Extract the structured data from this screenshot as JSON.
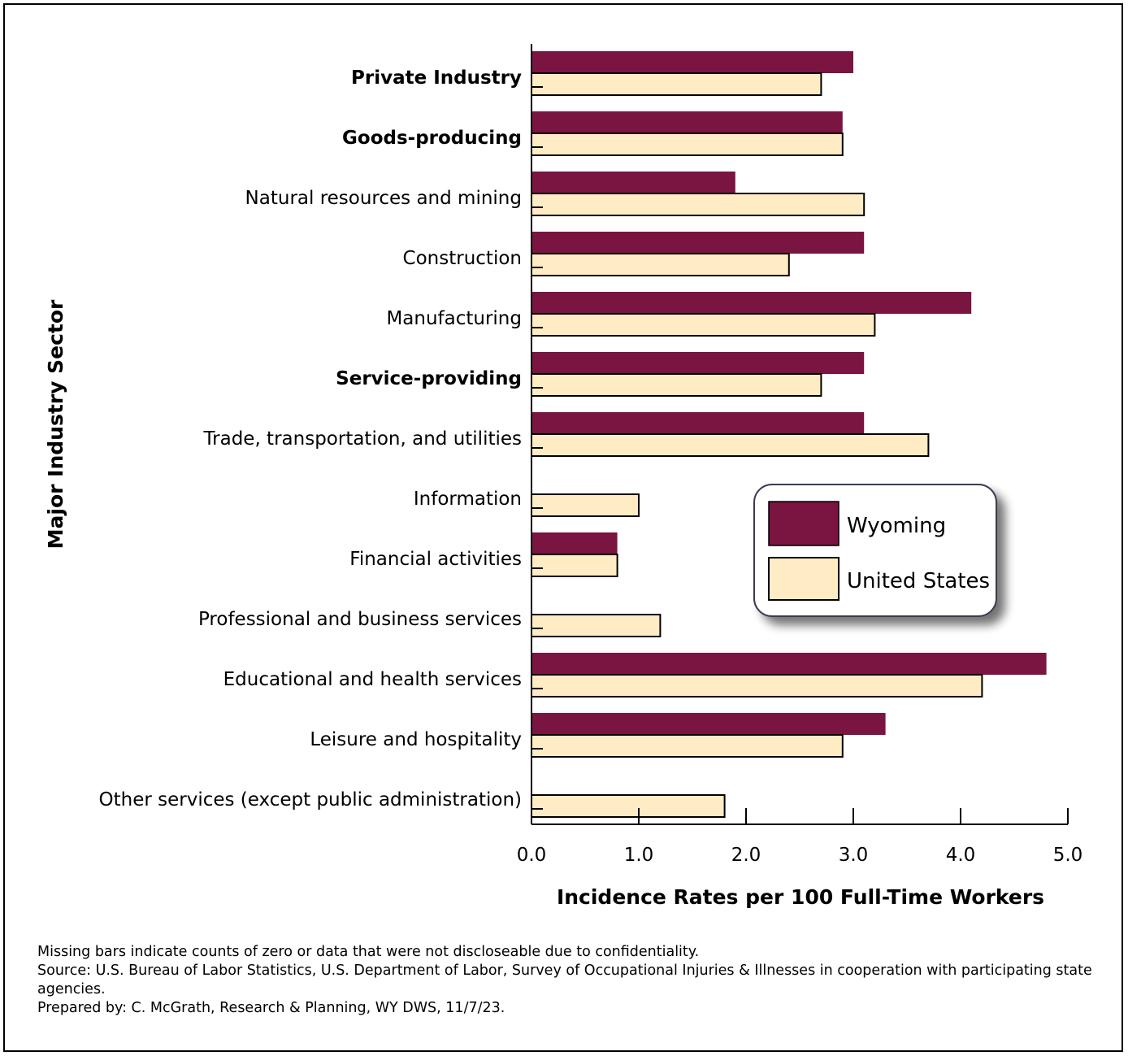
{
  "chart_data": {
    "type": "bar",
    "orientation": "horizontal",
    "ylabel": "Major Industry Sector",
    "xlabel": "Incidence Rates per 100 Full-Time Workers",
    "xlim": [
      0,
      5
    ],
    "x_ticks": [
      "0.0",
      "1.0",
      "2.0",
      "3.0",
      "4.0",
      "5.0"
    ],
    "categories": [
      "Private Industry",
      "Goods-producing",
      "Natural resources and mining",
      "Construction",
      "Manufacturing",
      "Service-providing",
      "Trade, transportation, and utilities",
      "Information",
      "Financial activities",
      "Professional and business services",
      "Educational and health services",
      "Leisure and hospitality",
      "Other services (except public administration)"
    ],
    "bold_categories": [
      "Private Industry",
      "Goods-producing",
      "Service-providing"
    ],
    "series": [
      {
        "name": "Wyoming",
        "color": "#7a1440",
        "values": [
          3.0,
          2.9,
          1.9,
          3.1,
          4.1,
          3.1,
          3.1,
          null,
          0.8,
          null,
          4.8,
          3.3,
          null
        ]
      },
      {
        "name": "United States",
        "color": "#ffebc4",
        "values": [
          2.7,
          2.9,
          3.1,
          2.4,
          3.2,
          2.7,
          3.7,
          1.0,
          0.8,
          1.2,
          4.2,
          2.9,
          1.8
        ]
      }
    ],
    "legend_position": "center-right",
    "grid": false
  },
  "notes": [
    "Missing bars indicate counts of zero or data that were not discloseable due to confidentiality.",
    "Source: U.S. Bureau of Labor Statistics, U.S. Department of Labor, Survey of Occupational Injuries & Illnesses in cooperation with participating state agencies.",
    "Prepared by: C. McGrath, Research & Planning, WY DWS, 11/7/23."
  ]
}
